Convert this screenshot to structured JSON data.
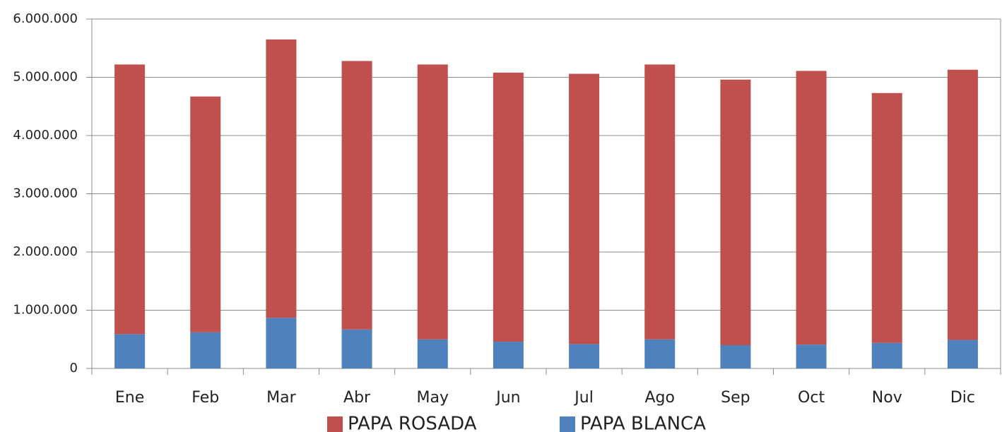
{
  "chart_data": {
    "type": "stacked_bar",
    "categories": [
      "Ene",
      "Feb",
      "Mar",
      "Abr",
      "May",
      "Jun",
      "Jul",
      "Ago",
      "Sep",
      "Oct",
      "Nov",
      "Dic"
    ],
    "series": [
      {
        "name": "PAPA ROSADA",
        "color": "#c0504d",
        "values": [
          4630000,
          4050000,
          4780000,
          4610000,
          4720000,
          4620000,
          4640000,
          4720000,
          4560000,
          4700000,
          4290000,
          4640000
        ]
      },
      {
        "name": "PAPA BLANCA",
        "color": "#4f81bd",
        "values": [
          590000,
          620000,
          870000,
          670000,
          500000,
          460000,
          420000,
          500000,
          400000,
          410000,
          440000,
          490000
        ]
      }
    ],
    "ylim": [
      0,
      6000000
    ],
    "yticks": [
      0,
      {
        "value": 1000000,
        "label": "1.000.000"
      },
      {
        "value": 2000000,
        "label": "2.000.000"
      },
      {
        "value": 3000000,
        "label": "3.000.000"
      },
      {
        "value": 4000000,
        "label": "4.000.000"
      },
      {
        "value": 5000000,
        "label": "5.000.000"
      },
      {
        "value": 6000000,
        "label": "6.000.000"
      }
    ],
    "grid": true,
    "legend": "bottom"
  }
}
